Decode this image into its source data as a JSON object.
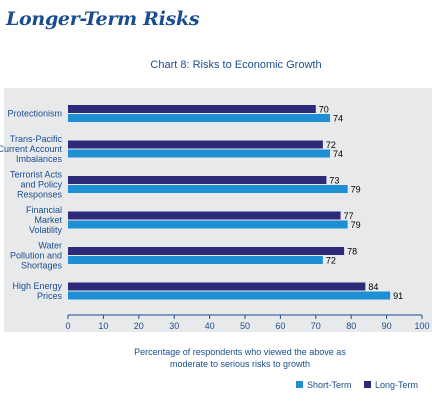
{
  "page": {
    "section_title": "Longer-Term Risks"
  },
  "chart_data": {
    "type": "bar",
    "orientation": "horizontal",
    "title": "Chart 8: Risks to Economic Growth",
    "categories": [
      [
        "Protectionism"
      ],
      [
        "Trans-Pacific",
        "Current Account",
        "Imbalances"
      ],
      [
        "Terrorist Acts",
        "and Policy",
        "Responses"
      ],
      [
        "Financial",
        "Market",
        "Volatility"
      ],
      [
        "Water",
        "Pollution and",
        "Shortages"
      ],
      [
        "High Energy",
        "Prices"
      ]
    ],
    "series": [
      {
        "name": "Short-Term",
        "color": "#1e8fd3",
        "values": [
          74,
          74,
          79,
          79,
          72,
          91
        ]
      },
      {
        "name": "Long-Term",
        "color": "#2d2a7a",
        "values": [
          70,
          72,
          73,
          77,
          78,
          84
        ]
      }
    ],
    "xlim": [
      0,
      100
    ],
    "xticks": [
      0,
      10,
      20,
      30,
      40,
      50,
      60,
      70,
      80,
      90,
      100
    ],
    "xlabel": [
      "Percentage of respondents who viewed the above as",
      "moderate to serious risks to growth"
    ],
    "legend_position": "bottom-right",
    "grid": false
  }
}
